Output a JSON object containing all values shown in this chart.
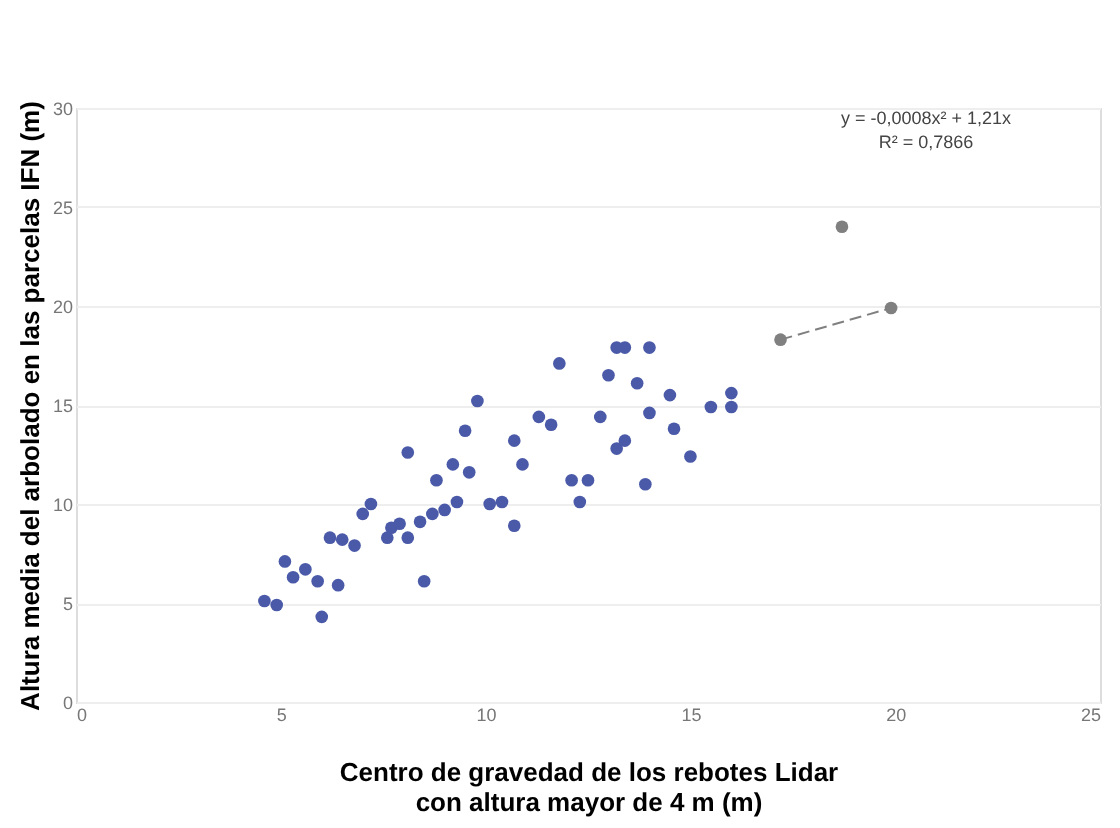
{
  "chart_data": {
    "type": "scatter",
    "xlabel": "Centro de gravedad de los rebotes Lidar\ncon altura mayor de 4 m (m)",
    "ylabel": "Altura media del arbolado en las parcelas IFN (m)",
    "xlim": [
      0,
      25
    ],
    "xticks": [
      0,
      5,
      10,
      15,
      20,
      25
    ],
    "ylim": [
      0,
      30
    ],
    "yticks": [
      0,
      5,
      10,
      15,
      20,
      25,
      30
    ],
    "grid": "y",
    "annotations": [
      "y = -0,0008x² + 1,21x",
      "R² = 0,7866"
    ],
    "series": [
      {
        "marker": "circle",
        "color": "#4a5aa8",
        "x": [
          4.6,
          4.9,
          5.1,
          5.3,
          5.6,
          5.9,
          6.0,
          6.4,
          6.2,
          6.5,
          6.8,
          7.2,
          7.6,
          7.7,
          8.1,
          8.4,
          8.5,
          8.7,
          8.8,
          9.2,
          9.3,
          9.5,
          9.6,
          9.8,
          8.1,
          10.1,
          10.4,
          10.7,
          10.7,
          10.9,
          11.3,
          11.6,
          11.8,
          12.1,
          12.3,
          12.8,
          13.0,
          13.2,
          13.2,
          12.5,
          13.4,
          14.0,
          13.7,
          14.0,
          14.5,
          14.6,
          13.4,
          13.9,
          15.0,
          15.5,
          16.0,
          16.0,
          7.0,
          7.9,
          9.0
        ],
        "values": [
          5.1,
          4.9,
          7.1,
          6.3,
          6.7,
          6.1,
          4.3,
          5.9,
          8.3,
          8.2,
          7.9,
          10.0,
          8.3,
          8.8,
          8.3,
          9.1,
          6.1,
          9.5,
          11.2,
          12.0,
          10.1,
          13.7,
          11.6,
          15.2,
          12.6,
          10.0,
          10.1,
          8.9,
          13.2,
          12.0,
          14.4,
          14.0,
          17.1,
          11.2,
          10.1,
          14.4,
          16.5,
          17.9,
          12.8,
          11.2,
          17.9,
          17.9,
          16.1,
          14.6,
          15.5,
          13.8,
          13.2,
          11.0,
          12.4,
          14.9,
          15.6,
          14.9,
          9.5,
          9.0,
          9.7
        ]
      },
      {
        "marker": "circle",
        "color": "#808080",
        "x": [
          17.2,
          19.9,
          18.7
        ],
        "values": [
          18.3,
          19.9,
          24.0
        ]
      },
      {
        "type": "line",
        "line_style": "dashed",
        "color": "#808080",
        "x": [
          17.2,
          19.9
        ],
        "values": [
          18.3,
          19.9
        ]
      }
    ]
  }
}
